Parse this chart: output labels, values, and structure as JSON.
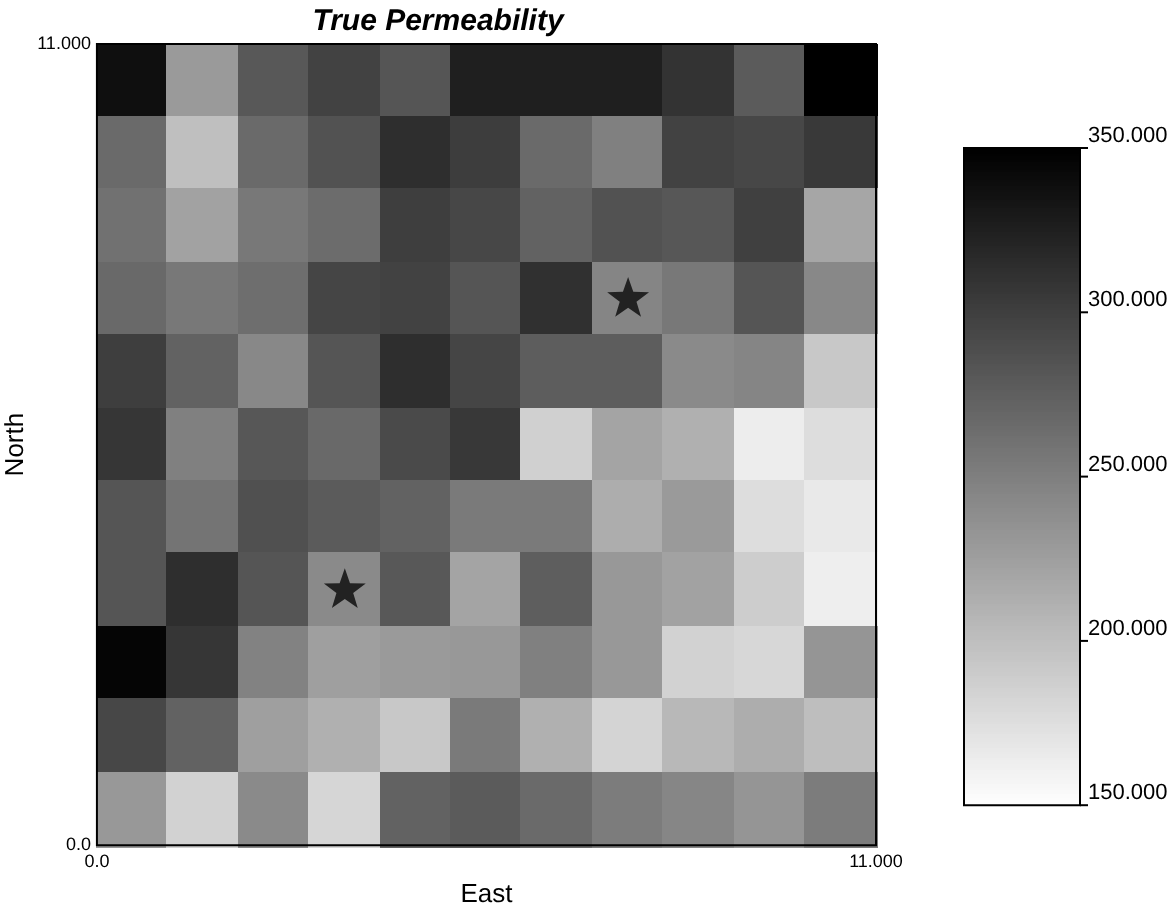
{
  "chart_data": {
    "type": "heatmap",
    "title": "True Permeability",
    "xlabel": "East",
    "ylabel": "North",
    "xlim": [
      0,
      11
    ],
    "ylim": [
      0,
      11
    ],
    "xticks": [
      {
        "value": 0,
        "label": "0.0"
      },
      {
        "value": 11,
        "label": "11.000"
      }
    ],
    "yticks": [
      {
        "value": 0,
        "label": "0.0"
      },
      {
        "value": 11,
        "label": "11.000"
      }
    ],
    "clim": [
      150,
      350
    ],
    "cticks": [
      {
        "value": 150,
        "label": "150.000"
      },
      {
        "value": 200,
        "label": "200.000"
      },
      {
        "value": 250,
        "label": "250.000"
      },
      {
        "value": 300,
        "label": "300.000"
      },
      {
        "value": 350,
        "label": "350.000"
      }
    ],
    "cells": [
      [
        338,
        229,
        281,
        298,
        283,
        326,
        326,
        326,
        310,
        279,
        350
      ],
      [
        267,
        200,
        267,
        286,
        314,
        302,
        267,
        250,
        298,
        294,
        305
      ],
      [
        261,
        223,
        256,
        265,
        301,
        294,
        273,
        286,
        282,
        300,
        220
      ],
      [
        268,
        256,
        264,
        296,
        298,
        283,
        312,
        246,
        256,
        283,
        243
      ],
      [
        301,
        273,
        243,
        283,
        314,
        296,
        277,
        277,
        242,
        246,
        193
      ],
      [
        308,
        250,
        282,
        268,
        292,
        306,
        187,
        221,
        212,
        164,
        177
      ],
      [
        283,
        259,
        287,
        279,
        273,
        254,
        254,
        214,
        229,
        177,
        167
      ],
      [
        283,
        314,
        283,
        242,
        281,
        221,
        276,
        231,
        223,
        189,
        163
      ],
      [
        346,
        308,
        248,
        225,
        229,
        231,
        250,
        231,
        185,
        181,
        233
      ],
      [
        294,
        273,
        225,
        212,
        193,
        254,
        212,
        184,
        206,
        214,
        201
      ],
      [
        231,
        185,
        242,
        182,
        273,
        279,
        267,
        253,
        245,
        233,
        253
      ]
    ],
    "series": [
      {
        "type": "scatter",
        "color": "#222222",
        "marker": "star",
        "x": [
          7.5,
          3.5
        ],
        "values": [
          7.5,
          3.5
        ]
      }
    ]
  }
}
